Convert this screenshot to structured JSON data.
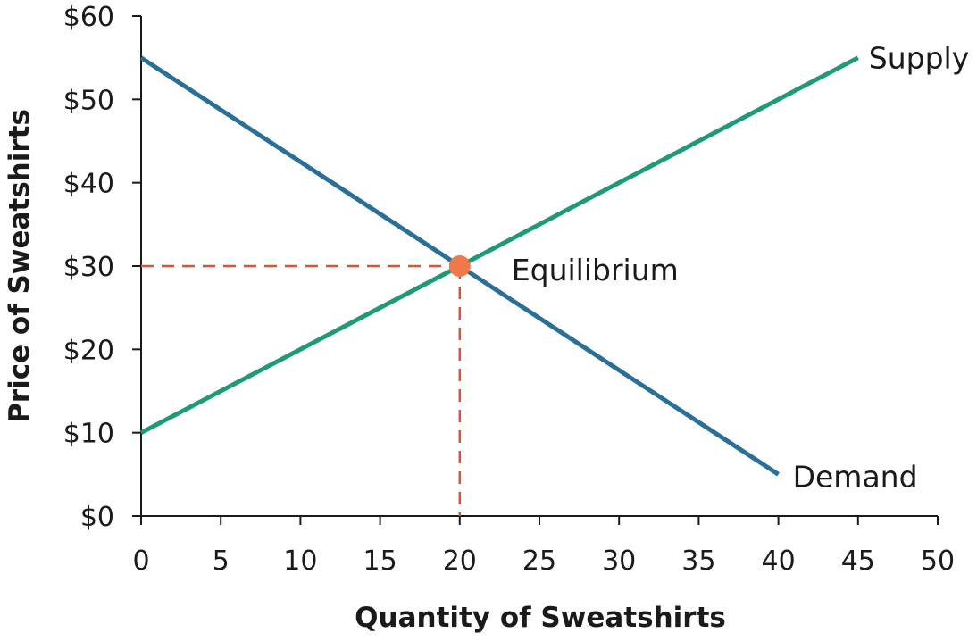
{
  "chart_data": {
    "type": "line",
    "xlabel": "Quantity of Sweatshirts",
    "ylabel": "Price of Sweatshirts",
    "xlim": [
      0,
      50
    ],
    "ylim": [
      0,
      60
    ],
    "x_ticks": [
      "0",
      "5",
      "10",
      "15",
      "20",
      "25",
      "30",
      "35",
      "40",
      "45",
      "50"
    ],
    "y_ticks": [
      "$0",
      "$10",
      "$20",
      "$30",
      "$40",
      "$50",
      "$60"
    ],
    "grid": false,
    "series": [
      {
        "name": "Supply",
        "color": "#1e9a78",
        "points": [
          {
            "x": 0,
            "y": 10
          },
          {
            "x": 45,
            "y": 55
          }
        ]
      },
      {
        "name": "Demand",
        "color": "#2a6f98",
        "points": [
          {
            "x": 0,
            "y": 55
          },
          {
            "x": 40,
            "y": 5
          }
        ]
      }
    ],
    "equilibrium": {
      "label": "Equilibrium",
      "x": 20,
      "y": 30,
      "color": "#ee7a4c",
      "guide_color": "#d9533b"
    }
  }
}
